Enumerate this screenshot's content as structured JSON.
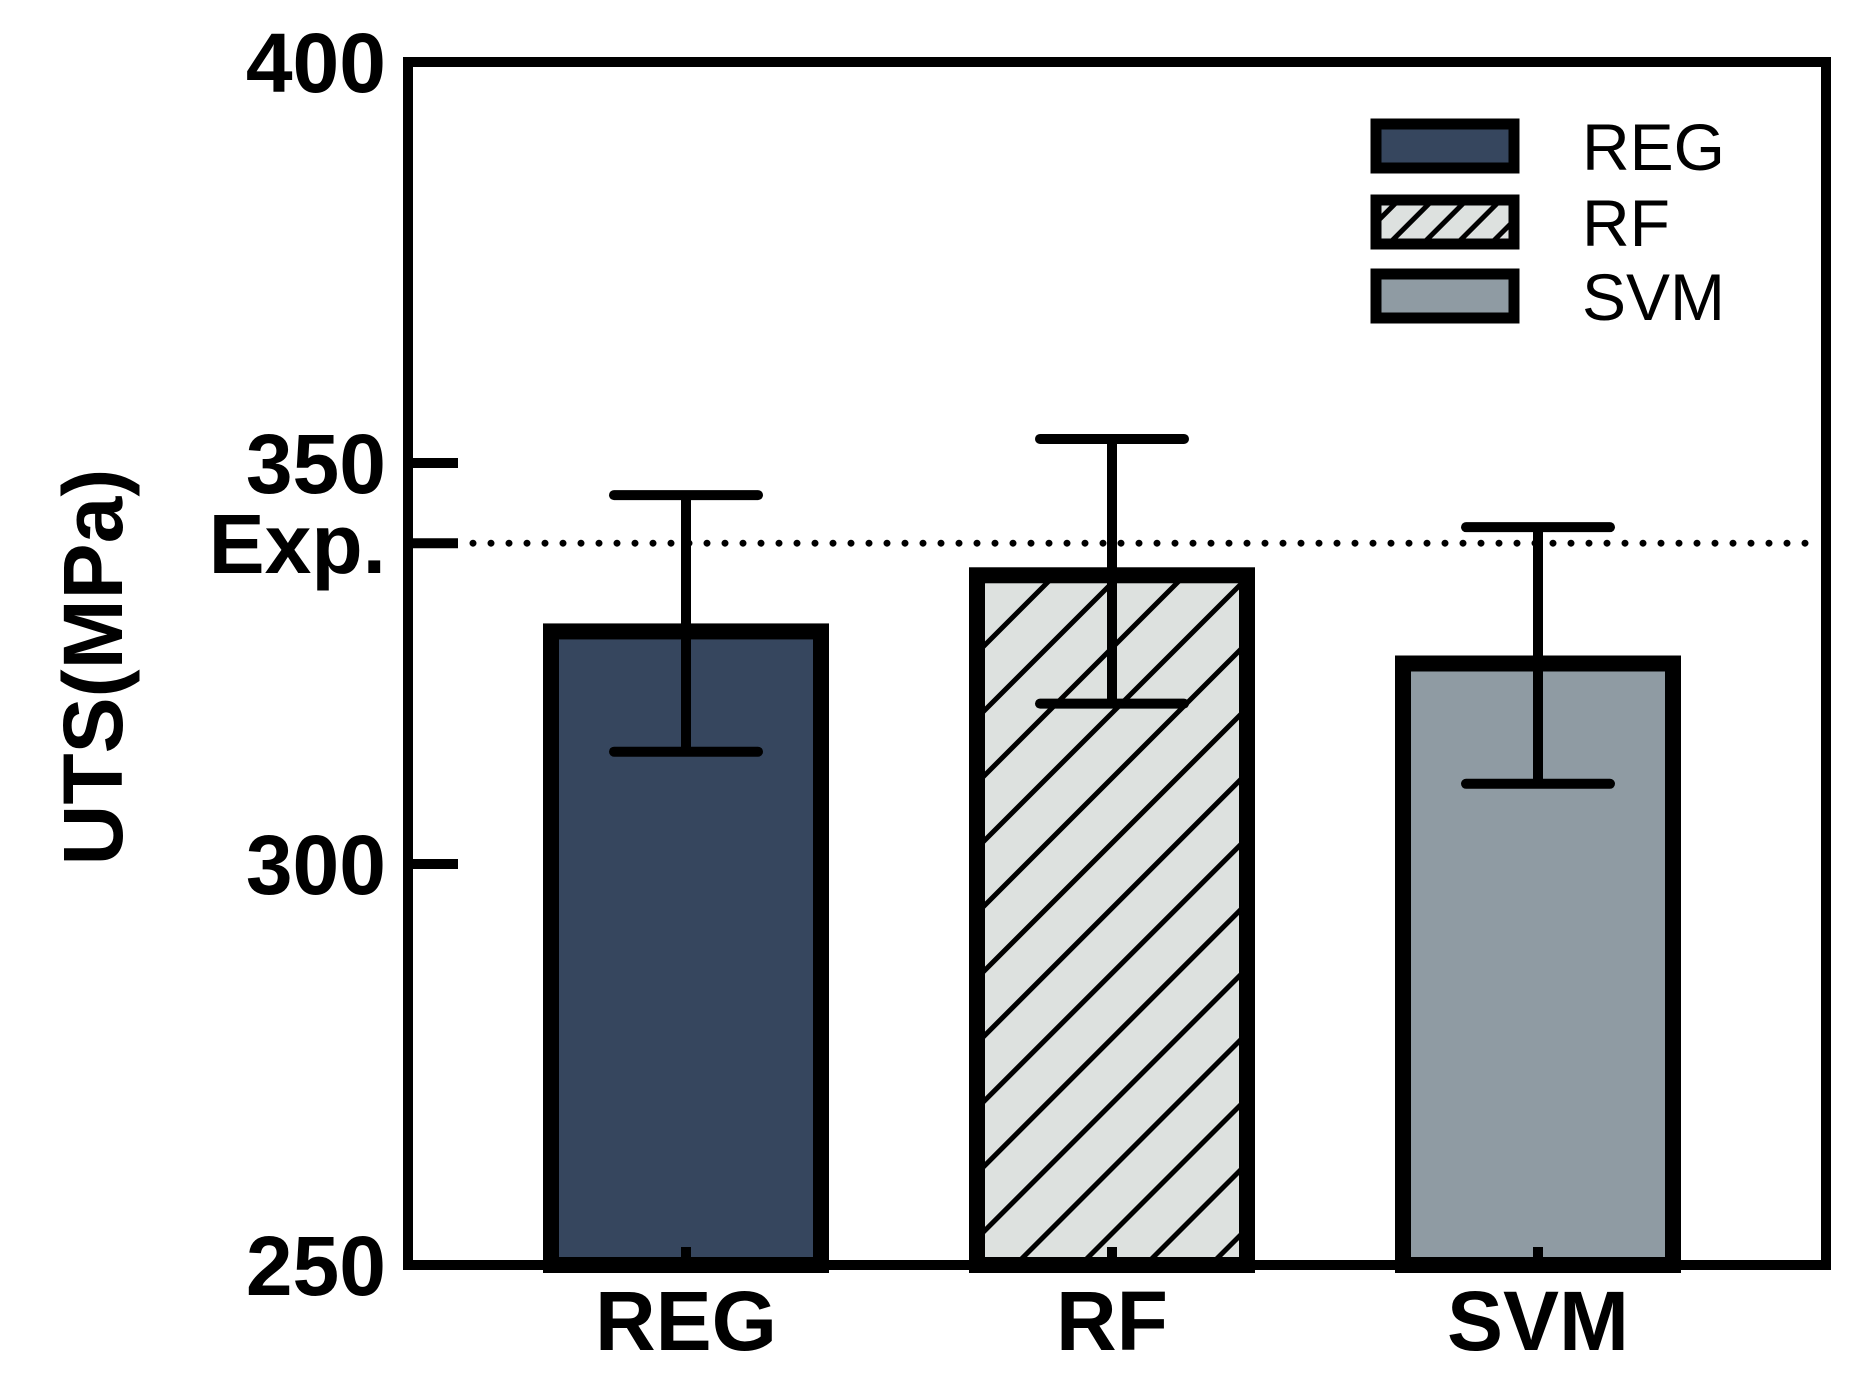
{
  "chart_data": {
    "type": "bar",
    "title": "",
    "xlabel": "",
    "ylabel": "UTS(MPa)",
    "ylim": [
      250,
      400
    ],
    "yticks": [
      250,
      300,
      350,
      400
    ],
    "categories": [
      "REG",
      "RF",
      "SVM"
    ],
    "values": [
      329,
      336,
      325
    ],
    "error_bars": [
      {
        "low": 314,
        "high": 346
      },
      {
        "low": 320,
        "high": 353
      },
      {
        "low": 310,
        "high": 342
      }
    ],
    "reference_line": {
      "label": "Exp.",
      "value": 340,
      "style": "dotted"
    },
    "grid": false,
    "legend": {
      "position": "top-right",
      "entries": [
        {
          "label": "REG",
          "fill": "#36465e",
          "pattern": "solid"
        },
        {
          "label": "RF",
          "fill": "#dde1df",
          "pattern": "hatch"
        },
        {
          "label": "SVM",
          "fill": "#8f9ba3",
          "pattern": "solid"
        }
      ]
    }
  }
}
